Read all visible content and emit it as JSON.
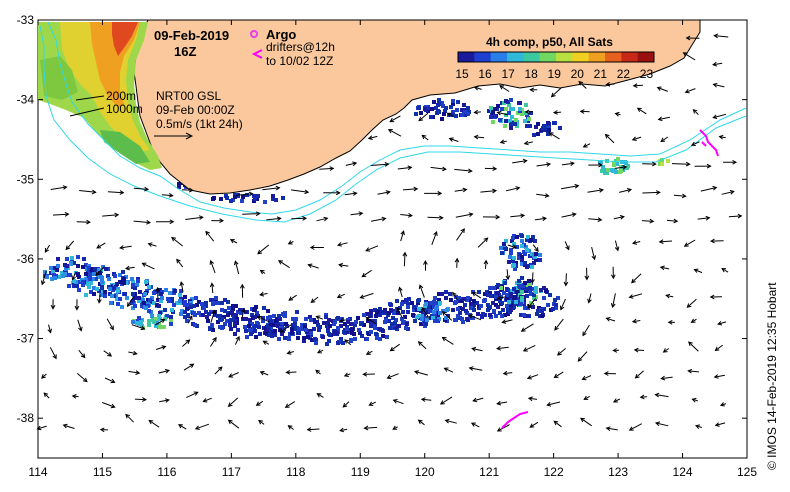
{
  "map": {
    "title_date": "09-Feb-2019",
    "title_hour": "16Z",
    "argo_label": "Argo",
    "drifter_label_1": "drifters@12h",
    "drifter_label_2": "to 10/02 12Z",
    "depth_label_200": "200m",
    "depth_label_1000": "1000m",
    "product_line_1": "NRT00 GSL",
    "product_line_2": "09-Feb 00:00Z",
    "velocity_scale": "0.5m/s (1kt 24h)",
    "credit": "© IMOS 14-Feb-2019 12:35 Hobart",
    "colorbar": {
      "title": "4h comp, p50, All Sats",
      "ticks": [
        "15",
        "16",
        "17",
        "18",
        "19",
        "20",
        "21",
        "22",
        "23"
      ],
      "min": 15,
      "max": 23.5
    },
    "axes": {
      "lon_min": 114,
      "lon_max": 125,
      "lat_min": -38.5,
      "lat_max": -33,
      "lon_ticks": [
        "114",
        "115",
        "116",
        "117",
        "118",
        "119",
        "120",
        "121",
        "122",
        "123",
        "124",
        "125"
      ],
      "lat_ticks": [
        "-33",
        "-34",
        "-35",
        "-36",
        "-37",
        "-38"
      ]
    },
    "colors": {
      "land": "#fac89c",
      "coast": "#000000",
      "isobath": "#30d8e8",
      "argo": "#e83cf0",
      "drifter": "#ff00ff",
      "warm_sst": "#f0c000"
    }
  }
}
